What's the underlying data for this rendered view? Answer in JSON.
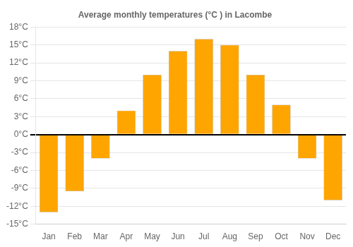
{
  "chart_data": {
    "type": "bar",
    "title": "Average monthly temperatures (°C ) in Lacombe",
    "categories": [
      "Jan",
      "Feb",
      "Mar",
      "Apr",
      "May",
      "Jun",
      "Jul",
      "Aug",
      "Sep",
      "Oct",
      "Nov",
      "Dec"
    ],
    "values": [
      -13,
      -9.5,
      -4,
      4,
      10,
      14,
      16,
      15,
      10,
      5,
      -4,
      -11
    ],
    "color": "#FFA500",
    "ylim": [
      -15,
      18
    ],
    "yticks": [
      {
        "value": -15,
        "label": "-15°C"
      },
      {
        "value": -12,
        "label": "-12°C"
      },
      {
        "value": -9,
        "label": "-9°C"
      },
      {
        "value": -6,
        "label": "-6°C"
      },
      {
        "value": -3,
        "label": "-3°C"
      },
      {
        "value": 0,
        "label": "0°C"
      },
      {
        "value": 3,
        "label": "3°C"
      },
      {
        "value": 6,
        "label": "6°C"
      },
      {
        "value": 9,
        "label": "9°C"
      },
      {
        "value": 12,
        "label": "12°C"
      },
      {
        "value": 15,
        "label": "15°C"
      },
      {
        "value": 18,
        "label": "18°C"
      }
    ],
    "grid": true
  }
}
